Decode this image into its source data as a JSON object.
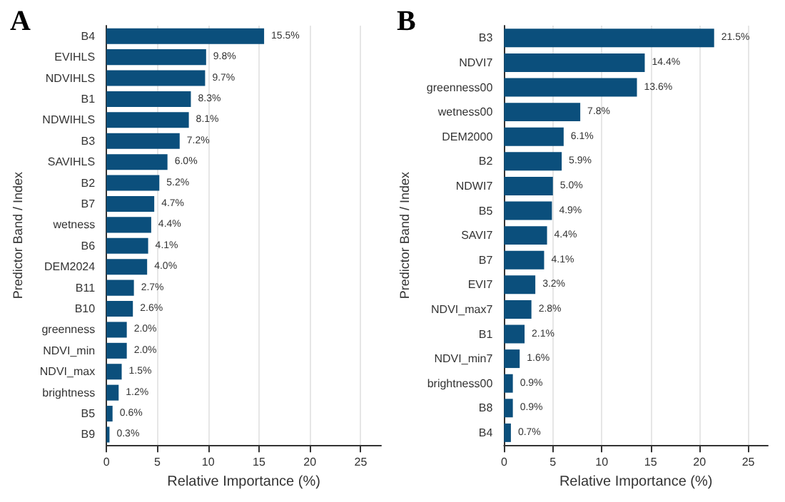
{
  "chart_data": [
    {
      "type": "bar",
      "orientation": "horizontal",
      "title": "A",
      "xlabel": "Relative Importance (%)",
      "ylabel": "Predictor Band / Index",
      "categories": [
        "B4",
        "EVIHLS",
        "NDVIHLS",
        "B1",
        "NDWIHLS",
        "B3",
        "SAVIHLS",
        "B2",
        "B7",
        "wetness",
        "B6",
        "DEM2024",
        "B11",
        "B10",
        "greenness",
        "NDVI_min",
        "NDVI_max",
        "brightness",
        "B5",
        "B9"
      ],
      "values": [
        15.5,
        9.8,
        9.7,
        8.3,
        8.1,
        7.2,
        6.0,
        5.2,
        4.7,
        4.4,
        4.1,
        4.0,
        2.7,
        2.6,
        2.0,
        2.0,
        1.5,
        1.2,
        0.6,
        0.3
      ],
      "value_labels": [
        "15.5%",
        "9.8%",
        "9.7%",
        "8.3%",
        "8.1%",
        "7.2%",
        "6.0%",
        "5.2%",
        "4.7%",
        "4.4%",
        "4.1%",
        "4.0%",
        "2.7%",
        "2.6%",
        "2.0%",
        "2.0%",
        "1.5%",
        "1.2%",
        "0.6%",
        "0.3%"
      ],
      "color": "#0b4f7c",
      "xlim": [
        0,
        27
      ],
      "xticks": [
        0,
        5,
        10,
        15,
        20,
        25
      ],
      "grid": "x"
    },
    {
      "type": "bar",
      "orientation": "horizontal",
      "title": "B",
      "xlabel": "Relative Importance (%)",
      "ylabel": "Predictor Band / Index",
      "categories": [
        "B3",
        "NDVI7",
        "greenness00",
        "wetness00",
        "DEM2000",
        "B2",
        "NDWI7",
        "B5",
        "SAVI7",
        "B7",
        "EVI7",
        "NDVI_max7",
        "B1",
        "NDVI_min7",
        "brightness00",
        "B8",
        "B4"
      ],
      "values": [
        21.5,
        14.4,
        13.6,
        7.8,
        6.1,
        5.9,
        5.0,
        4.9,
        4.4,
        4.1,
        3.2,
        2.8,
        2.1,
        1.6,
        0.9,
        0.9,
        0.7
      ],
      "value_labels": [
        "21.5%",
        "14.4%",
        "13.6%",
        "7.8%",
        "6.1%",
        "5.9%",
        "5.0%",
        "4.9%",
        "4.4%",
        "4.1%",
        "3.2%",
        "2.8%",
        "2.1%",
        "1.6%",
        "0.9%",
        "0.9%",
        "0.7%"
      ],
      "color": "#0b4f7c",
      "xlim": [
        0,
        27
      ],
      "xticks": [
        0,
        5,
        10,
        15,
        20,
        25
      ],
      "grid": "x"
    }
  ]
}
